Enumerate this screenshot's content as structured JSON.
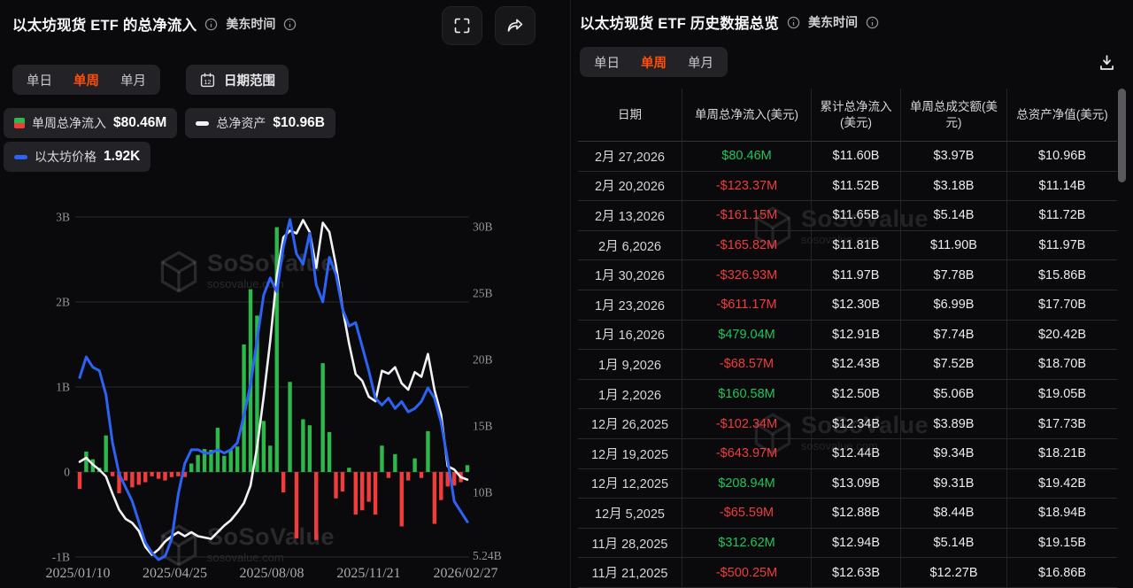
{
  "left_panel": {
    "title": "以太坊现货 ETF 的总净流入",
    "timezone_label": "美东时间",
    "tabs": [
      "单日",
      "单周",
      "单月"
    ],
    "active_tab": "单周",
    "date_range_label": "日期范围",
    "legend": [
      {
        "name": "单周总净流入",
        "value": "$80.46M",
        "swatch": "green-red-square"
      },
      {
        "name": "总净资产",
        "value": "$10.96B",
        "swatch": "white-dash"
      },
      {
        "name": "以太坊价格",
        "value": "1.92K",
        "swatch": "blue-dash"
      }
    ]
  },
  "right_panel": {
    "title": "以太坊现货 ETF 历史数据总览",
    "timezone_label": "美东时间",
    "tabs": [
      "单日",
      "单周",
      "单月"
    ],
    "active_tab": "单周",
    "table": {
      "columns": [
        "日期",
        "单周总净流入(美元)",
        "累计总净流入(美元)",
        "单周总成交额(美元)",
        "总资产净值(美元)"
      ],
      "rows": [
        {
          "date": "2月 27,2026",
          "inflow": "$80.46M",
          "sign": "pos",
          "cumulative": "$11.60B",
          "volume": "$3.97B",
          "nav": "$10.96B"
        },
        {
          "date": "2月 20,2026",
          "inflow": "-$123.37M",
          "sign": "neg",
          "cumulative": "$11.52B",
          "volume": "$3.18B",
          "nav": "$11.14B"
        },
        {
          "date": "2月 13,2026",
          "inflow": "-$161.15M",
          "sign": "neg",
          "cumulative": "$11.65B",
          "volume": "$5.14B",
          "nav": "$11.72B"
        },
        {
          "date": "2月 6,2026",
          "inflow": "-$165.82M",
          "sign": "neg",
          "cumulative": "$11.81B",
          "volume": "$11.90B",
          "nav": "$11.97B"
        },
        {
          "date": "1月 30,2026",
          "inflow": "-$326.93M",
          "sign": "neg",
          "cumulative": "$11.97B",
          "volume": "$7.78B",
          "nav": "$15.86B"
        },
        {
          "date": "1月 23,2026",
          "inflow": "-$611.17M",
          "sign": "neg",
          "cumulative": "$12.30B",
          "volume": "$6.99B",
          "nav": "$17.70B"
        },
        {
          "date": "1月 16,2026",
          "inflow": "$479.04M",
          "sign": "pos",
          "cumulative": "$12.91B",
          "volume": "$7.74B",
          "nav": "$20.42B"
        },
        {
          "date": "1月 9,2026",
          "inflow": "-$68.57M",
          "sign": "neg",
          "cumulative": "$12.43B",
          "volume": "$7.52B",
          "nav": "$18.70B"
        },
        {
          "date": "1月 2,2026",
          "inflow": "$160.58M",
          "sign": "pos",
          "cumulative": "$12.50B",
          "volume": "$5.06B",
          "nav": "$19.05B"
        },
        {
          "date": "12月 26,2025",
          "inflow": "-$102.34M",
          "sign": "neg",
          "cumulative": "$12.34B",
          "volume": "$3.89B",
          "nav": "$17.73B"
        },
        {
          "date": "12月 19,2025",
          "inflow": "-$643.97M",
          "sign": "neg",
          "cumulative": "$12.44B",
          "volume": "$9.34B",
          "nav": "$18.21B"
        },
        {
          "date": "12月 12,2025",
          "inflow": "$208.94M",
          "sign": "pos",
          "cumulative": "$13.09B",
          "volume": "$9.31B",
          "nav": "$19.42B"
        },
        {
          "date": "12月 5,2025",
          "inflow": "-$65.59M",
          "sign": "neg",
          "cumulative": "$12.88B",
          "volume": "$8.44B",
          "nav": "$18.94B"
        },
        {
          "date": "11月 28,2025",
          "inflow": "$312.62M",
          "sign": "pos",
          "cumulative": "$12.94B",
          "volume": "$5.14B",
          "nav": "$19.15B"
        },
        {
          "date": "11月 21,2025",
          "inflow": "-$500.25M",
          "sign": "neg",
          "cumulative": "$12.63B",
          "volume": "$12.27B",
          "nav": "$16.86B"
        }
      ]
    }
  },
  "watermark": {
    "brand": "SoSoValue",
    "domain": "sosovalue.com"
  },
  "chart_data": {
    "type": "bar",
    "subtype": "mixed-bar-line",
    "title": "以太坊现货 ETF 的总净流入 (单周)",
    "x_tick_labels": [
      "2025/01/10",
      "2025/04/25",
      "2025/08/08",
      "2025/11/21",
      "2026/02/27"
    ],
    "left_axis": {
      "ticks": [
        "3B",
        "2B",
        "1B",
        "0",
        "-1B"
      ],
      "values": [
        3,
        2,
        1,
        0,
        -1
      ],
      "unit": "USD"
    },
    "right_axis": {
      "ticks": [
        "30B",
        "25B",
        "20B",
        "15B",
        "10B",
        "5.24B"
      ],
      "values": [
        30,
        25,
        20,
        15,
        10,
        5.24
      ],
      "unit": "USD"
    },
    "grid": true,
    "legend_position": "top-left",
    "series": [
      {
        "name": "单周总净流入",
        "type": "bar",
        "axis": "left",
        "unit": "$B",
        "color_positive": "#2cb84b",
        "color_negative": "#f23c3c",
        "values": [
          -0.2,
          0.24,
          0.15,
          0.05,
          0.43,
          -0.05,
          -0.25,
          -0.1,
          -0.18,
          -0.15,
          -0.12,
          -0.05,
          -0.08,
          -0.1,
          -0.06,
          -0.05,
          -0.06,
          0.1,
          0.2,
          0.27,
          0.26,
          0.52,
          0.19,
          0.26,
          0.3,
          1.5,
          2.15,
          1.84,
          0.6,
          0.31,
          2.88,
          -0.24,
          1.06,
          -0.78,
          0.62,
          0.55,
          -0.8,
          1.28,
          0.47,
          -0.31,
          -0.23,
          0.05,
          -0.5,
          -0.45,
          -0.35,
          -0.5,
          0.31,
          -0.07,
          0.21,
          -0.64,
          -0.1,
          0.16,
          -0.07,
          0.48,
          -0.61,
          -0.33,
          -0.17,
          -0.16,
          -0.12,
          0.08
        ]
      },
      {
        "name": "总净资产",
        "type": "line",
        "axis": "right",
        "unit": "$B",
        "color": "#f2f2f2",
        "last_value_label": "$10.96B",
        "values": [
          12.3,
          12.6,
          12.1,
          11.7,
          11.2,
          9.9,
          8.7,
          8.0,
          7.7,
          7.1,
          5.9,
          5.3,
          5.7,
          6.3,
          6.7,
          7.0,
          6.7,
          7.0,
          6.7,
          6.6,
          6.5,
          7.0,
          7.5,
          7.9,
          8.5,
          9.2,
          10.5,
          13.4,
          17.2,
          21.4,
          26.3,
          29.2,
          29.7,
          29.5,
          30.5,
          29.6,
          26.9,
          30.3,
          29.6,
          27.1,
          23.9,
          21.2,
          18.9,
          18.4,
          17.2,
          16.86,
          19.15,
          18.94,
          19.42,
          18.21,
          17.73,
          19.05,
          18.7,
          20.42,
          17.7,
          15.86,
          11.97,
          11.72,
          11.14,
          10.96
        ]
      },
      {
        "name": "以太坊价格",
        "type": "line",
        "axis": "hidden",
        "color": "#2d63f5",
        "last_value_label": "1.92K",
        "values_plot_fraction": [
          0.53,
          0.59,
          0.56,
          0.55,
          0.48,
          0.34,
          0.25,
          0.21,
          0.17,
          0.11,
          0.05,
          0.02,
          0.0,
          0.01,
          0.06,
          0.19,
          0.28,
          0.32,
          0.32,
          0.31,
          0.31,
          0.32,
          0.31,
          0.32,
          0.34,
          0.42,
          0.51,
          0.64,
          0.77,
          0.82,
          0.78,
          0.91,
          0.99,
          0.89,
          0.86,
          0.95,
          0.8,
          0.75,
          0.88,
          0.83,
          0.73,
          0.68,
          0.69,
          0.62,
          0.55,
          0.47,
          0.45,
          0.47,
          0.44,
          0.46,
          0.43,
          0.44,
          0.46,
          0.5,
          0.47,
          0.4,
          0.29,
          0.17,
          0.14,
          0.11
        ]
      }
    ]
  }
}
